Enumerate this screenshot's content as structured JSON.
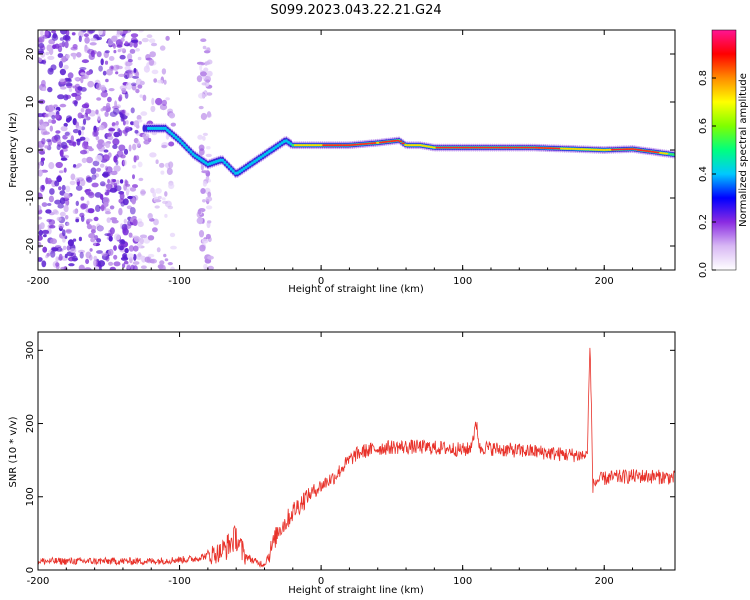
{
  "title": "S099.2023.043.22.21.G24",
  "chart_data": [
    {
      "type": "heatmap",
      "xlabel": "Height of straight line (km)",
      "ylabel": "Frequency (Hz)",
      "xlim": [
        -200,
        250
      ],
      "ylim": [
        -25,
        25
      ],
      "x_ticks": [
        -200,
        -100,
        0,
        100,
        200
      ],
      "y_ticks": [
        -20,
        -10,
        0,
        10,
        20
      ],
      "grid": false,
      "colorbar": {
        "label": "Normalized spectral amplitude",
        "range": [
          0,
          1
        ],
        "ticks": [
          "0.0",
          "0.2",
          "0.4",
          "0.6",
          "0.8"
        ],
        "colors": [
          "#ffffff",
          "#d8b8f4",
          "#8a2be2",
          "#0000ff",
          "#00c8ff",
          "#00ff7f",
          "#7fff00",
          "#ffff00",
          "#ff8c00",
          "#ff0000",
          "#ff1493"
        ]
      },
      "ridge": {
        "x": [
          -125,
          -110,
          -100,
          -90,
          -80,
          -70,
          -60,
          -50,
          -40,
          -30,
          -25,
          -20,
          0,
          20,
          40,
          55,
          60,
          70,
          80,
          100,
          150,
          200,
          220,
          250
        ],
        "y": [
          4.5,
          4.5,
          2,
          -1,
          -3,
          -2,
          -5,
          -3,
          -1,
          1,
          2,
          1,
          1,
          1,
          1.5,
          2,
          1,
          1,
          0.5,
          0.5,
          0.5,
          0,
          0.2,
          -1
        ]
      }
    },
    {
      "type": "line",
      "xlabel": "Height of straight line (km)",
      "ylabel": "SNR (10 * v/v)",
      "xlim": [
        -200,
        250
      ],
      "ylim": [
        0,
        325
      ],
      "x_ticks": [
        -200,
        -100,
        0,
        100,
        200
      ],
      "y_ticks": [
        0,
        100,
        200,
        300
      ],
      "grid": false,
      "series": [
        {
          "color": "#e8322a",
          "x": [
            -200,
            -180,
            -160,
            -140,
            -120,
            -100,
            -90,
            -80,
            -70,
            -65,
            -60,
            -55,
            -50,
            -45,
            -40,
            -35,
            -30,
            -25,
            -20,
            -15,
            -10,
            -5,
            0,
            5,
            10,
            15,
            20,
            25,
            30,
            40,
            50,
            60,
            70,
            80,
            90,
            100,
            105,
            110,
            112,
            115,
            120,
            130,
            140,
            150,
            160,
            170,
            180,
            188,
            190,
            192,
            195,
            200,
            210,
            220,
            230,
            240,
            250
          ],
          "y": [
            12,
            12,
            12,
            12,
            12,
            14,
            15,
            20,
            25,
            35,
            45,
            22,
            15,
            10,
            8,
            30,
            55,
            65,
            80,
            90,
            100,
            108,
            115,
            122,
            128,
            140,
            150,
            158,
            162,
            166,
            168,
            168,
            168,
            167,
            166,
            164,
            165,
            200,
            165,
            168,
            166,
            164,
            163,
            162,
            160,
            158,
            157,
            156,
            310,
            115,
            122,
            125,
            127,
            128,
            128,
            127,
            126
          ]
        }
      ]
    }
  ]
}
